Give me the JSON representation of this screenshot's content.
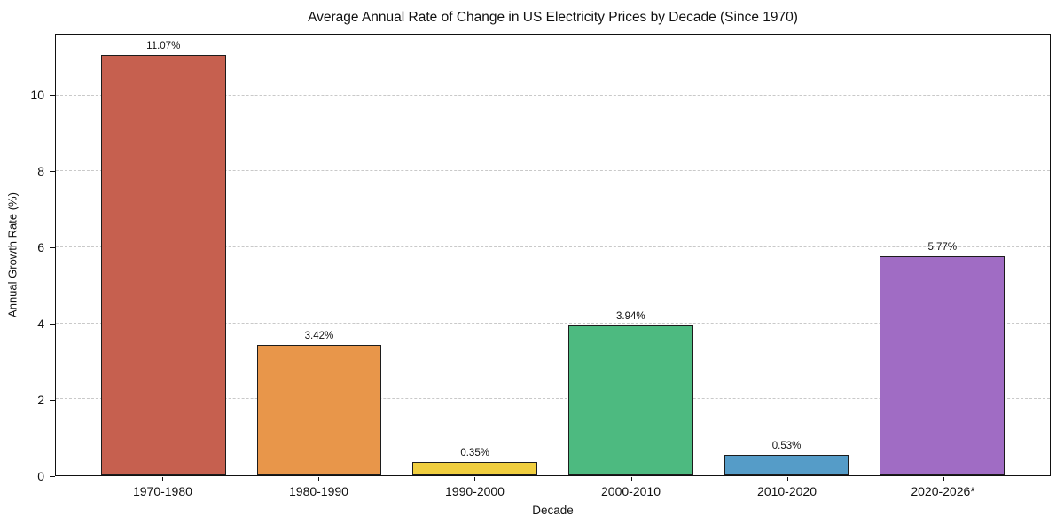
{
  "chart_data": {
    "type": "bar",
    "title": "Average Annual Rate of Change in US Electricity Prices by Decade (Since 1970)",
    "xlabel": "Decade",
    "ylabel": "Annual Growth Rate (%)",
    "categories": [
      "1970-1980",
      "1980-1990",
      "1990-2000",
      "2000-2010",
      "2010-2020",
      "2020-2026*"
    ],
    "values": [
      11.07,
      3.42,
      0.35,
      3.94,
      0.53,
      5.77
    ],
    "bar_labels": [
      "11.07%",
      "3.42%",
      "0.35%",
      "3.94%",
      "0.53%",
      "5.77%"
    ],
    "bar_colors": [
      "#C6604F",
      "#E8964A",
      "#F0CE3F",
      "#4DBA80",
      "#559CC8",
      "#A06CC4"
    ],
    "bar_edge_color": "#1c1c1c",
    "y_ticks": [
      0,
      2,
      4,
      6,
      8,
      10
    ],
    "ylim": [
      0,
      11.6
    ],
    "grid": "horizontal-dashed",
    "grid_color": "#c9c9c9",
    "legend": "none",
    "background_color": "#ffffff",
    "text_color": "#111111"
  }
}
